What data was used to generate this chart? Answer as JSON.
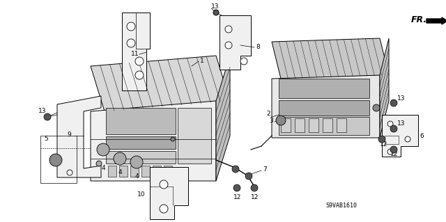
{
  "background_color": "#ffffff",
  "fig_width": 6.4,
  "fig_height": 3.19,
  "dpi": 100,
  "diagram_code": "S9VAB1610",
  "line_color": "#000000",
  "gray_fill": "#c8c8c8",
  "light_gray": "#e8e8e8",
  "mid_gray": "#b0b0b0"
}
